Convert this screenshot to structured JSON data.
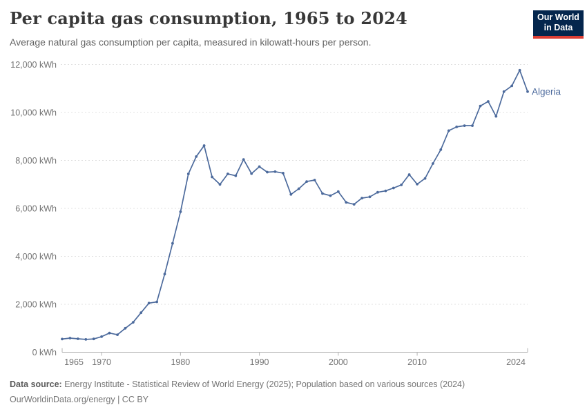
{
  "header": {
    "title": "Per capita gas consumption, 1965 to 2024",
    "subtitle": "Average natural gas consumption per capita, measured in kilowatt-hours per person.",
    "logo": {
      "line1": "Our World",
      "line2": "in Data"
    }
  },
  "chart_data": {
    "type": "line",
    "title": "Per capita gas consumption, 1965 to 2024",
    "xlabel": "",
    "ylabel": "",
    "y_unit": "kWh",
    "xlim": [
      1965,
      2024
    ],
    "ylim": [
      0,
      12000
    ],
    "x_ticks": [
      1965,
      1970,
      1980,
      1990,
      2000,
      2010,
      2024
    ],
    "y_ticks": [
      0,
      2000,
      4000,
      6000,
      8000,
      10000,
      12000
    ],
    "grid": "horizontal-dashed",
    "legend_position": "end-of-line-label",
    "series": [
      {
        "name": "Algeria",
        "color": "#4c6a9c",
        "x": [
          1965,
          1966,
          1967,
          1968,
          1969,
          1970,
          1971,
          1972,
          1973,
          1974,
          1975,
          1976,
          1977,
          1978,
          1979,
          1980,
          1981,
          1982,
          1983,
          1984,
          1985,
          1986,
          1987,
          1988,
          1989,
          1990,
          1991,
          1992,
          1993,
          1994,
          1995,
          1996,
          1997,
          1998,
          1999,
          2000,
          2001,
          2002,
          2003,
          2004,
          2005,
          2006,
          2007,
          2008,
          2009,
          2010,
          2011,
          2012,
          2013,
          2014,
          2015,
          2016,
          2017,
          2018,
          2019,
          2020,
          2021,
          2022,
          2023,
          2024
        ],
        "values": [
          550,
          590,
          560,
          535,
          555,
          650,
          800,
          730,
          1000,
          1250,
          1650,
          2050,
          2100,
          3260,
          4540,
          5860,
          7440,
          8160,
          8620,
          7310,
          7000,
          7440,
          7360,
          8040,
          7450,
          7740,
          7510,
          7530,
          7470,
          6580,
          6820,
          7120,
          7180,
          6620,
          6530,
          6700,
          6250,
          6170,
          6430,
          6480,
          6670,
          6730,
          6850,
          6980,
          7410,
          7010,
          7250,
          7870,
          8450,
          9240,
          9400,
          9450,
          9450,
          10270,
          10460,
          9840,
          10870,
          11110,
          11760,
          10870
        ]
      }
    ]
  },
  "footer": {
    "source_label": "Data source:",
    "source_text": " Energy Institute - Statistical Review of World Energy (2025); Population based on various sources (2024)",
    "license_line": "OurWorldinData.org/energy | CC BY"
  },
  "colors": {
    "line": "#4c6a9c",
    "axis_text": "#737373",
    "gridline": "#e0e0e0",
    "axis_line": "#b3b3b3",
    "logo_bg": "#04264d",
    "logo_accent": "#dc3e34"
  }
}
